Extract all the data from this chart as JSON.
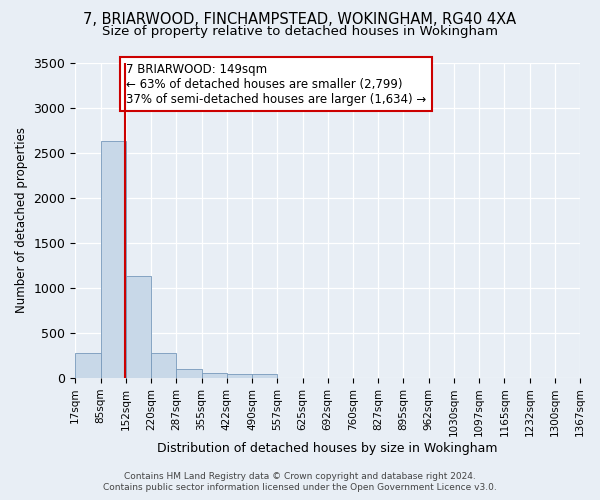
{
  "title": "7, BRIARWOOD, FINCHAMPSTEAD, WOKINGHAM, RG40 4XA",
  "subtitle": "Size of property relative to detached houses in Wokingham",
  "xlabel": "Distribution of detached houses by size in Wokingham",
  "ylabel": "Number of detached properties",
  "bin_edges": [
    17,
    85,
    152,
    220,
    287,
    355,
    422,
    490,
    557,
    625,
    692,
    760,
    827,
    895,
    962,
    1030,
    1097,
    1165,
    1232,
    1300,
    1367
  ],
  "bin_counts": [
    280,
    2630,
    1130,
    280,
    100,
    60,
    40,
    40,
    0,
    0,
    0,
    0,
    0,
    0,
    0,
    0,
    0,
    0,
    0,
    0
  ],
  "bar_color": "#c8d8e8",
  "bar_edge_color": "#7799bb",
  "property_size": 149,
  "red_line_color": "#cc0000",
  "annotation_text": "7 BRIARWOOD: 149sqm\n← 63% of detached houses are smaller (2,799)\n37% of semi-detached houses are larger (1,634) →",
  "annotation_box_color": "#ffffff",
  "annotation_box_edge_color": "#cc0000",
  "footer_line1": "Contains HM Land Registry data © Crown copyright and database right 2024.",
  "footer_line2": "Contains public sector information licensed under the Open Government Licence v3.0.",
  "ylim": [
    0,
    3500
  ],
  "background_color": "#e8eef5",
  "title_fontsize": 10.5,
  "subtitle_fontsize": 9.5,
  "tick_label_fontsize": 7.5,
  "ylabel_fontsize": 8.5,
  "xlabel_fontsize": 9,
  "annotation_fontsize": 8.5,
  "footer_fontsize": 6.5
}
